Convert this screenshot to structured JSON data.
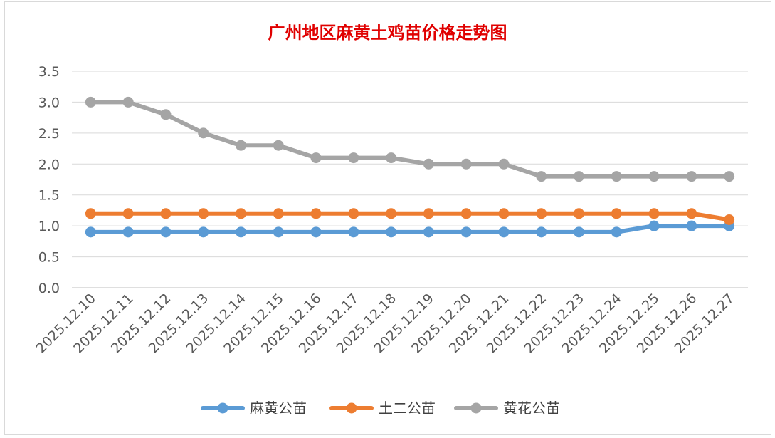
{
  "chart_data": {
    "type": "line",
    "title": "广州地区麻黄土鸡苗价格走势图",
    "xlabel": "",
    "ylabel": "",
    "categories": [
      "2025.12.10",
      "2025.12.11",
      "2025.12.12",
      "2025.12.13",
      "2025.12.14",
      "2025.12.15",
      "2025.12.16",
      "2025.12.17",
      "2025.12.18",
      "2025.12.19",
      "2025.12.20",
      "2025.12.21",
      "2025.12.22",
      "2025.12.23",
      "2025.12.24",
      "2025.12.25",
      "2025.12.26",
      "2025.12.27"
    ],
    "yticks": [
      "0.0",
      "0.5",
      "1.0",
      "1.5",
      "2.0",
      "2.5",
      "3.0",
      "3.5"
    ],
    "ylim": [
      0,
      3.5
    ],
    "grid": true,
    "legend_position": "bottom",
    "series": [
      {
        "name": "麻黄公苗",
        "color": "#5b9bd5",
        "values": [
          0.9,
          0.9,
          0.9,
          0.9,
          0.9,
          0.9,
          0.9,
          0.9,
          0.9,
          0.9,
          0.9,
          0.9,
          0.9,
          0.9,
          0.9,
          1.0,
          1.0,
          1.0
        ]
      },
      {
        "name": "土二公苗",
        "color": "#ed7d31",
        "values": [
          1.2,
          1.2,
          1.2,
          1.2,
          1.2,
          1.2,
          1.2,
          1.2,
          1.2,
          1.2,
          1.2,
          1.2,
          1.2,
          1.2,
          1.2,
          1.2,
          1.2,
          1.1
        ]
      },
      {
        "name": "黄花公苗",
        "color": "#a5a5a5",
        "values": [
          3.0,
          3.0,
          2.8,
          2.5,
          2.3,
          2.3,
          2.1,
          2.1,
          2.1,
          2.0,
          2.0,
          2.0,
          1.8,
          1.8,
          1.8,
          1.8,
          1.8,
          1.8
        ]
      }
    ]
  }
}
